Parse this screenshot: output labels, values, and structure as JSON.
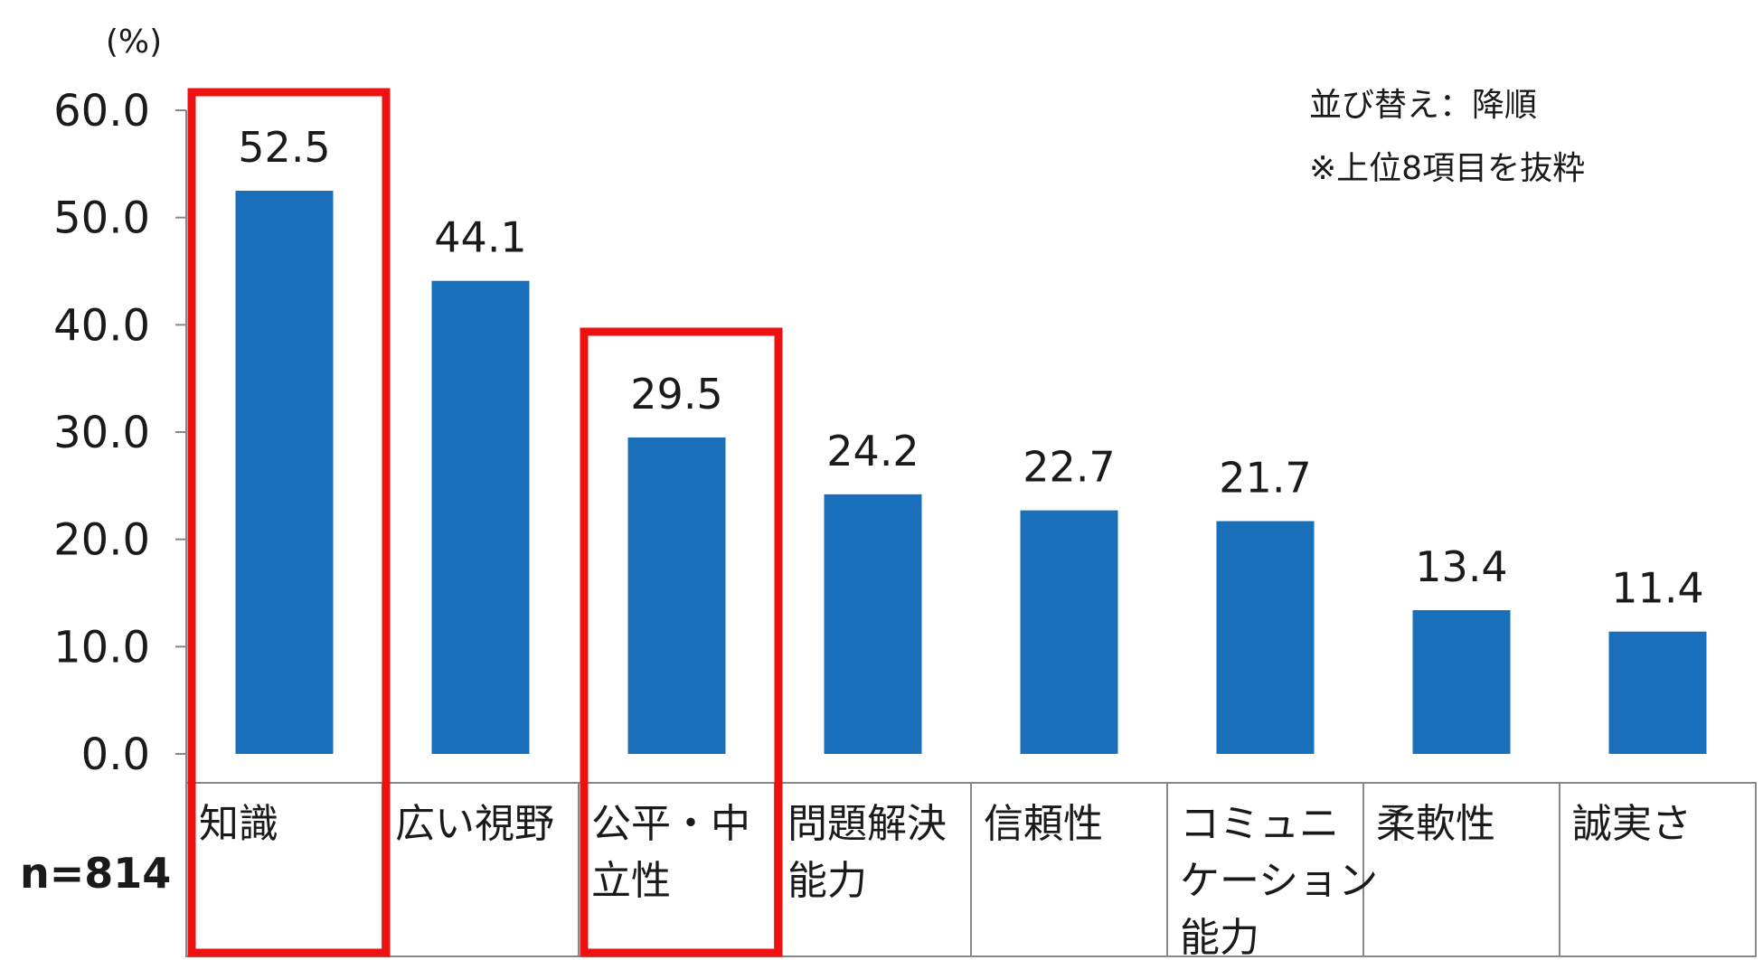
{
  "chart_data": {
    "type": "bar",
    "unit_label": "(%)",
    "categories": [
      [
        "知識"
      ],
      [
        "広い視野"
      ],
      [
        "公平・中",
        "立性"
      ],
      [
        "問題解決",
        "能力"
      ],
      [
        "信頼性"
      ],
      [
        "コミュニ",
        "ケーション",
        "能力"
      ],
      [
        "柔軟性"
      ],
      [
        "誠実さ"
      ]
    ],
    "values": [
      52.5,
      44.1,
      29.5,
      24.2,
      22.7,
      21.7,
      13.4,
      11.4
    ],
    "value_labels": [
      "52.5",
      "44.1",
      "29.5",
      "24.2",
      "22.7",
      "21.7",
      "13.4",
      "11.4"
    ],
    "ylim": [
      0,
      60
    ],
    "yticks": [
      "0.0",
      "10.0",
      "20.0",
      "30.0",
      "40.0",
      "50.0",
      "60.0"
    ],
    "highlighted_indices": [
      0,
      2
    ],
    "notes": [
      "並び替え：降順",
      "※上位8項目を抜粋"
    ],
    "sample_size": "n=814",
    "colors": {
      "bar": "#1a6fba",
      "highlight": "#ee1111",
      "axis": "#888888"
    }
  }
}
